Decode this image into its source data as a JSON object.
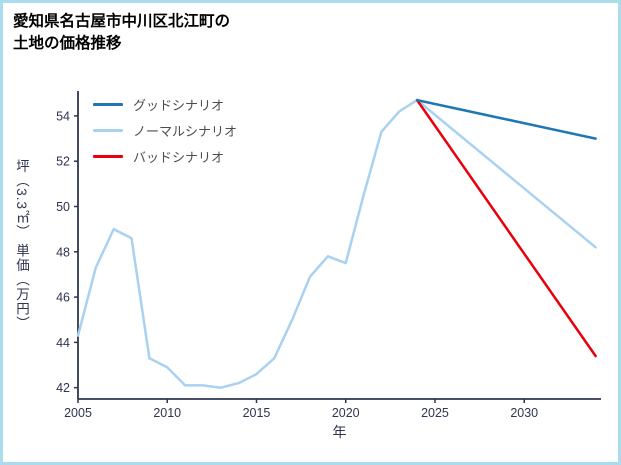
{
  "title": {
    "line1": "愛知県名古屋市中川区北江町の",
    "line2": "土地の価格推移"
  },
  "colors": {
    "border": "#aadcee",
    "axis": "#2e3550",
    "legend_text": "#4d4d4d",
    "good": "#1f77b4",
    "normal": "#a9d1f0",
    "bad": "#e8000b"
  },
  "chart_data": {
    "type": "line",
    "title": "愛知県名古屋市中川区北江町の土地の価格推移",
    "xlabel": "年",
    "ylabel": "坪（3.3㎡） 単価（万円）",
    "xlim": [
      2005,
      2034.3
    ],
    "ylim": [
      41.5,
      55.1
    ],
    "xticks": [
      2005,
      2010,
      2015,
      2020,
      2025,
      2030
    ],
    "yticks": [
      42,
      44,
      46,
      48,
      50,
      52,
      54
    ],
    "grid": false,
    "legend_position": "upper-left",
    "legend": [
      {
        "label": "グッドシナリオ",
        "color_key": "good"
      },
      {
        "label": "ノーマルシナリオ",
        "color_key": "normal"
      },
      {
        "label": "バッドシナリオ",
        "color_key": "bad"
      }
    ],
    "series": [
      {
        "name": "実績（ノーマル色）",
        "color_key": "normal",
        "x": [
          2005,
          2006,
          2007,
          2008,
          2009,
          2010,
          2011,
          2012,
          2013,
          2014,
          2015,
          2016,
          2017,
          2018,
          2019,
          2020,
          2021,
          2022,
          2023,
          2024
        ],
        "y": [
          44.3,
          47.3,
          49.0,
          48.6,
          43.3,
          42.9,
          42.1,
          42.1,
          42.0,
          42.2,
          42.6,
          43.3,
          45.0,
          46.9,
          47.8,
          47.5,
          50.5,
          53.3,
          54.2,
          54.7
        ]
      },
      {
        "name": "ノーマルシナリオ",
        "color_key": "normal",
        "x": [
          2024,
          2034
        ],
        "y": [
          54.7,
          48.2
        ]
      },
      {
        "name": "バッドシナリオ",
        "color_key": "bad",
        "x": [
          2024,
          2034
        ],
        "y": [
          54.7,
          43.4
        ]
      },
      {
        "name": "グッドシナリオ",
        "color_key": "good",
        "x": [
          2024,
          2034
        ],
        "y": [
          54.7,
          53.0
        ]
      }
    ]
  }
}
